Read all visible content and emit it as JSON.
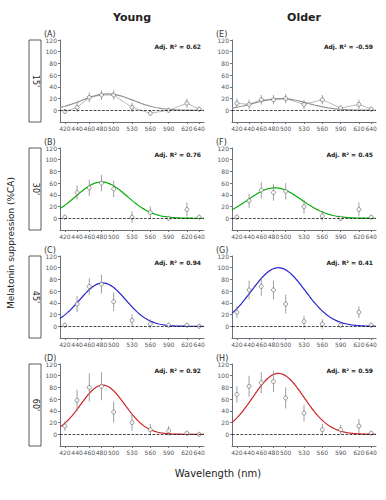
{
  "column_titles": [
    "Young",
    "Older"
  ],
  "xlabel": "Wavelength (nm)",
  "ylabel": "Melatonin suppression (%CA)",
  "row_labels": [
    "15'",
    "30'",
    "45'",
    "60'"
  ],
  "chart_data": [
    {
      "type": "scatter",
      "title": "(A)",
      "marker": "circle",
      "line_style": "solid",
      "x": [
        420,
        440,
        460,
        480,
        500,
        530,
        560,
        590,
        620,
        640
      ],
      "values": [
        -2,
        5,
        22,
        26,
        26,
        5,
        -5,
        0,
        12,
        2
      ],
      "errors": [
        4,
        8,
        8,
        8,
        8,
        8,
        4,
        4,
        8,
        4
      ],
      "fit": {
        "amp": 28,
        "mu": 490,
        "sigma": 42,
        "color": "#909090"
      },
      "annotations": [
        "Adj. R² = 0.62"
      ],
      "hline": 0,
      "xlim": [
        412,
        648
      ],
      "xticks": [
        420,
        440,
        460,
        480,
        500,
        530,
        560,
        590,
        620,
        640
      ],
      "ylim": [
        -20,
        120
      ],
      "yticks": [
        0,
        20,
        40,
        60,
        80,
        100,
        120
      ],
      "grid": false
    },
    {
      "type": "scatter",
      "title": "(B)",
      "marker": "circle",
      "x": [
        420,
        440,
        460,
        480,
        500,
        530,
        560,
        590,
        620,
        640
      ],
      "values": [
        2,
        44,
        52,
        60,
        50,
        2,
        10,
        0,
        15,
        2
      ],
      "errors": [
        4,
        12,
        14,
        14,
        14,
        10,
        10,
        4,
        12,
        4
      ],
      "fit": {
        "amp": 62,
        "mu": 480,
        "sigma": 42,
        "color": "#00aa00"
      },
      "annotations": [
        "Adj. R² = 0.76"
      ],
      "hline": 0,
      "xlim": [
        412,
        648
      ],
      "xticks": [
        420,
        440,
        460,
        480,
        500,
        530,
        560,
        590,
        620,
        640
      ],
      "ylim": [
        -20,
        120
      ],
      "yticks": [
        0,
        20,
        40,
        60,
        80,
        100,
        120
      ],
      "grid": false
    },
    {
      "type": "scatter",
      "title": "(C)",
      "marker": "circle",
      "x": [
        420,
        440,
        460,
        480,
        500,
        530,
        560,
        590,
        620,
        640
      ],
      "values": [
        2,
        38,
        68,
        72,
        42,
        10,
        4,
        2,
        2,
        0
      ],
      "errors": [
        4,
        14,
        14,
        16,
        16,
        10,
        8,
        4,
        4,
        4
      ],
      "fit": {
        "amp": 74,
        "mu": 482,
        "sigma": 38,
        "color": "#2222cc"
      },
      "annotations": [
        "Adj. R² = 0.94"
      ],
      "hline": 0,
      "xlim": [
        412,
        648
      ],
      "xticks": [
        420,
        440,
        460,
        480,
        500,
        530,
        560,
        590,
        620,
        640
      ],
      "ylim": [
        -20,
        120
      ],
      "yticks": [
        0,
        20,
        40,
        60,
        80,
        100,
        120
      ],
      "grid": false
    },
    {
      "type": "scatter",
      "title": "(D)",
      "marker": "circle",
      "x": [
        420,
        440,
        460,
        480,
        500,
        530,
        560,
        590,
        620,
        640
      ],
      "values": [
        14,
        58,
        80,
        82,
        38,
        20,
        8,
        6,
        2,
        0
      ],
      "errors": [
        8,
        18,
        24,
        24,
        18,
        14,
        10,
        8,
        4,
        4
      ],
      "fit": {
        "amp": 84,
        "mu": 482,
        "sigma": 36,
        "color": "#cc2222"
      },
      "annotations": [
        "Adj. R² = 0.92"
      ],
      "hline": 0,
      "xlim": [
        412,
        648
      ],
      "xticks": [
        420,
        440,
        460,
        480,
        500,
        530,
        560,
        590,
        620,
        640
      ],
      "ylim": [
        -20,
        120
      ],
      "yticks": [
        0,
        20,
        40,
        60,
        80,
        100,
        120
      ],
      "grid": false
    },
    {
      "type": "scatter",
      "title": "(E)",
      "marker": "circle",
      "line_style": "solid",
      "x": [
        420,
        440,
        460,
        480,
        500,
        530,
        560,
        590,
        620,
        640
      ],
      "values": [
        12,
        10,
        18,
        18,
        20,
        10,
        18,
        4,
        10,
        2
      ],
      "errors": [
        8,
        8,
        8,
        8,
        8,
        8,
        8,
        4,
        8,
        4
      ],
      "fit": {
        "amp": 20,
        "mu": 492,
        "sigma": 44,
        "color": "#909090"
      },
      "annotations": [
        "Adj. R² = -0.59"
      ],
      "hline": 0,
      "xlim": [
        412,
        648
      ],
      "xticks": [
        420,
        440,
        460,
        480,
        500,
        530,
        560,
        590,
        620,
        640
      ],
      "ylim": [
        -20,
        120
      ],
      "yticks": [
        0,
        20,
        40,
        60,
        80,
        100,
        120
      ],
      "grid": false
    },
    {
      "type": "scatter",
      "title": "(F)",
      "marker": "circle",
      "x": [
        420,
        440,
        460,
        480,
        500,
        530,
        560,
        590,
        620,
        640
      ],
      "values": [
        2,
        30,
        48,
        44,
        46,
        20,
        4,
        0,
        15,
        2
      ],
      "errors": [
        4,
        12,
        14,
        14,
        14,
        12,
        8,
        4,
        12,
        4
      ],
      "fit": {
        "amp": 52,
        "mu": 482,
        "sigma": 44,
        "color": "#00aa00"
      },
      "annotations": [
        "Adj. R² = 0.45"
      ],
      "hline": 0,
      "xlim": [
        412,
        648
      ],
      "xticks": [
        420,
        440,
        460,
        480,
        500,
        530,
        560,
        590,
        620,
        640
      ],
      "ylim": [
        -20,
        120
      ],
      "yticks": [
        0,
        20,
        40,
        60,
        80,
        100,
        120
      ],
      "grid": false
    },
    {
      "type": "scatter",
      "title": "(G)",
      "marker": "circle",
      "x": [
        420,
        440,
        460,
        480,
        500,
        530,
        560,
        590,
        620,
        640
      ],
      "values": [
        24,
        62,
        68,
        62,
        38,
        8,
        4,
        2,
        24,
        2
      ],
      "errors": [
        10,
        16,
        16,
        16,
        16,
        10,
        8,
        4,
        10,
        4
      ],
      "fit": {
        "amp": 100,
        "mu": 488,
        "sigma": 44,
        "color": "#2222cc"
      },
      "annotations": [
        "Adj. R² = 0.41"
      ],
      "hline": 0,
      "xlim": [
        412,
        648
      ],
      "xticks": [
        420,
        440,
        460,
        480,
        500,
        530,
        560,
        590,
        620,
        640
      ],
      "ylim": [
        -20,
        120
      ],
      "yticks": [
        0,
        20,
        40,
        60,
        80,
        100,
        120
      ],
      "grid": false
    },
    {
      "type": "scatter",
      "title": "(H)",
      "marker": "circle",
      "x": [
        420,
        440,
        460,
        480,
        500,
        530,
        560,
        590,
        620,
        640
      ],
      "values": [
        68,
        82,
        88,
        90,
        62,
        36,
        8,
        8,
        14,
        2
      ],
      "errors": [
        14,
        18,
        18,
        18,
        18,
        14,
        10,
        8,
        12,
        4
      ],
      "fit": {
        "amp": 104,
        "mu": 488,
        "sigma": 42,
        "color": "#cc2222"
      },
      "annotations": [
        "Adj. R² = 0.59"
      ],
      "hline": 0,
      "xlim": [
        412,
        648
      ],
      "xticks": [
        420,
        440,
        460,
        480,
        500,
        530,
        560,
        590,
        620,
        640
      ],
      "ylim": [
        -20,
        120
      ],
      "yticks": [
        0,
        20,
        40,
        60,
        80,
        100,
        120
      ],
      "grid": false
    }
  ]
}
